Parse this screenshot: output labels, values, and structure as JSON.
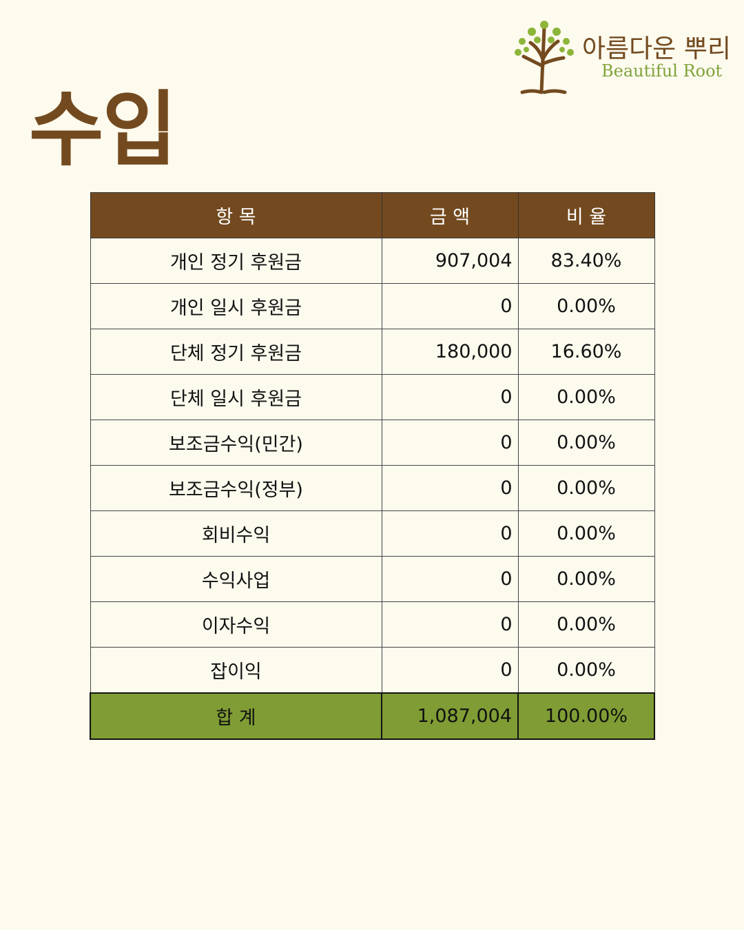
{
  "header": {
    "title": "수입",
    "logo": {
      "name": "아름다운 뿌리",
      "subtitle": "Beautiful Root"
    }
  },
  "table": {
    "columns": [
      "항 목",
      "금 액",
      "비 율"
    ],
    "rows": [
      [
        "개인 정기 후원금",
        "907,004",
        "83.40%"
      ],
      [
        "개인 일시 후원금",
        "0",
        "0.00%"
      ],
      [
        "단체 정기 후원금",
        "180,000",
        "16.60%"
      ],
      [
        "단체 일시 후원금",
        "0",
        "0.00%"
      ],
      [
        "보조금수익(민간)",
        "0",
        "0.00%"
      ],
      [
        "보조금수익(정부)",
        "0",
        "0.00%"
      ],
      [
        "회비수익",
        "0",
        "0.00%"
      ],
      [
        "수익사업",
        "0",
        "0.00%"
      ],
      [
        "이자수익",
        "0",
        "0.00%"
      ],
      [
        "잡이익",
        "0",
        "0.00%"
      ]
    ],
    "total": [
      "합 계",
      "1,087,004",
      "100.00%"
    ]
  }
}
